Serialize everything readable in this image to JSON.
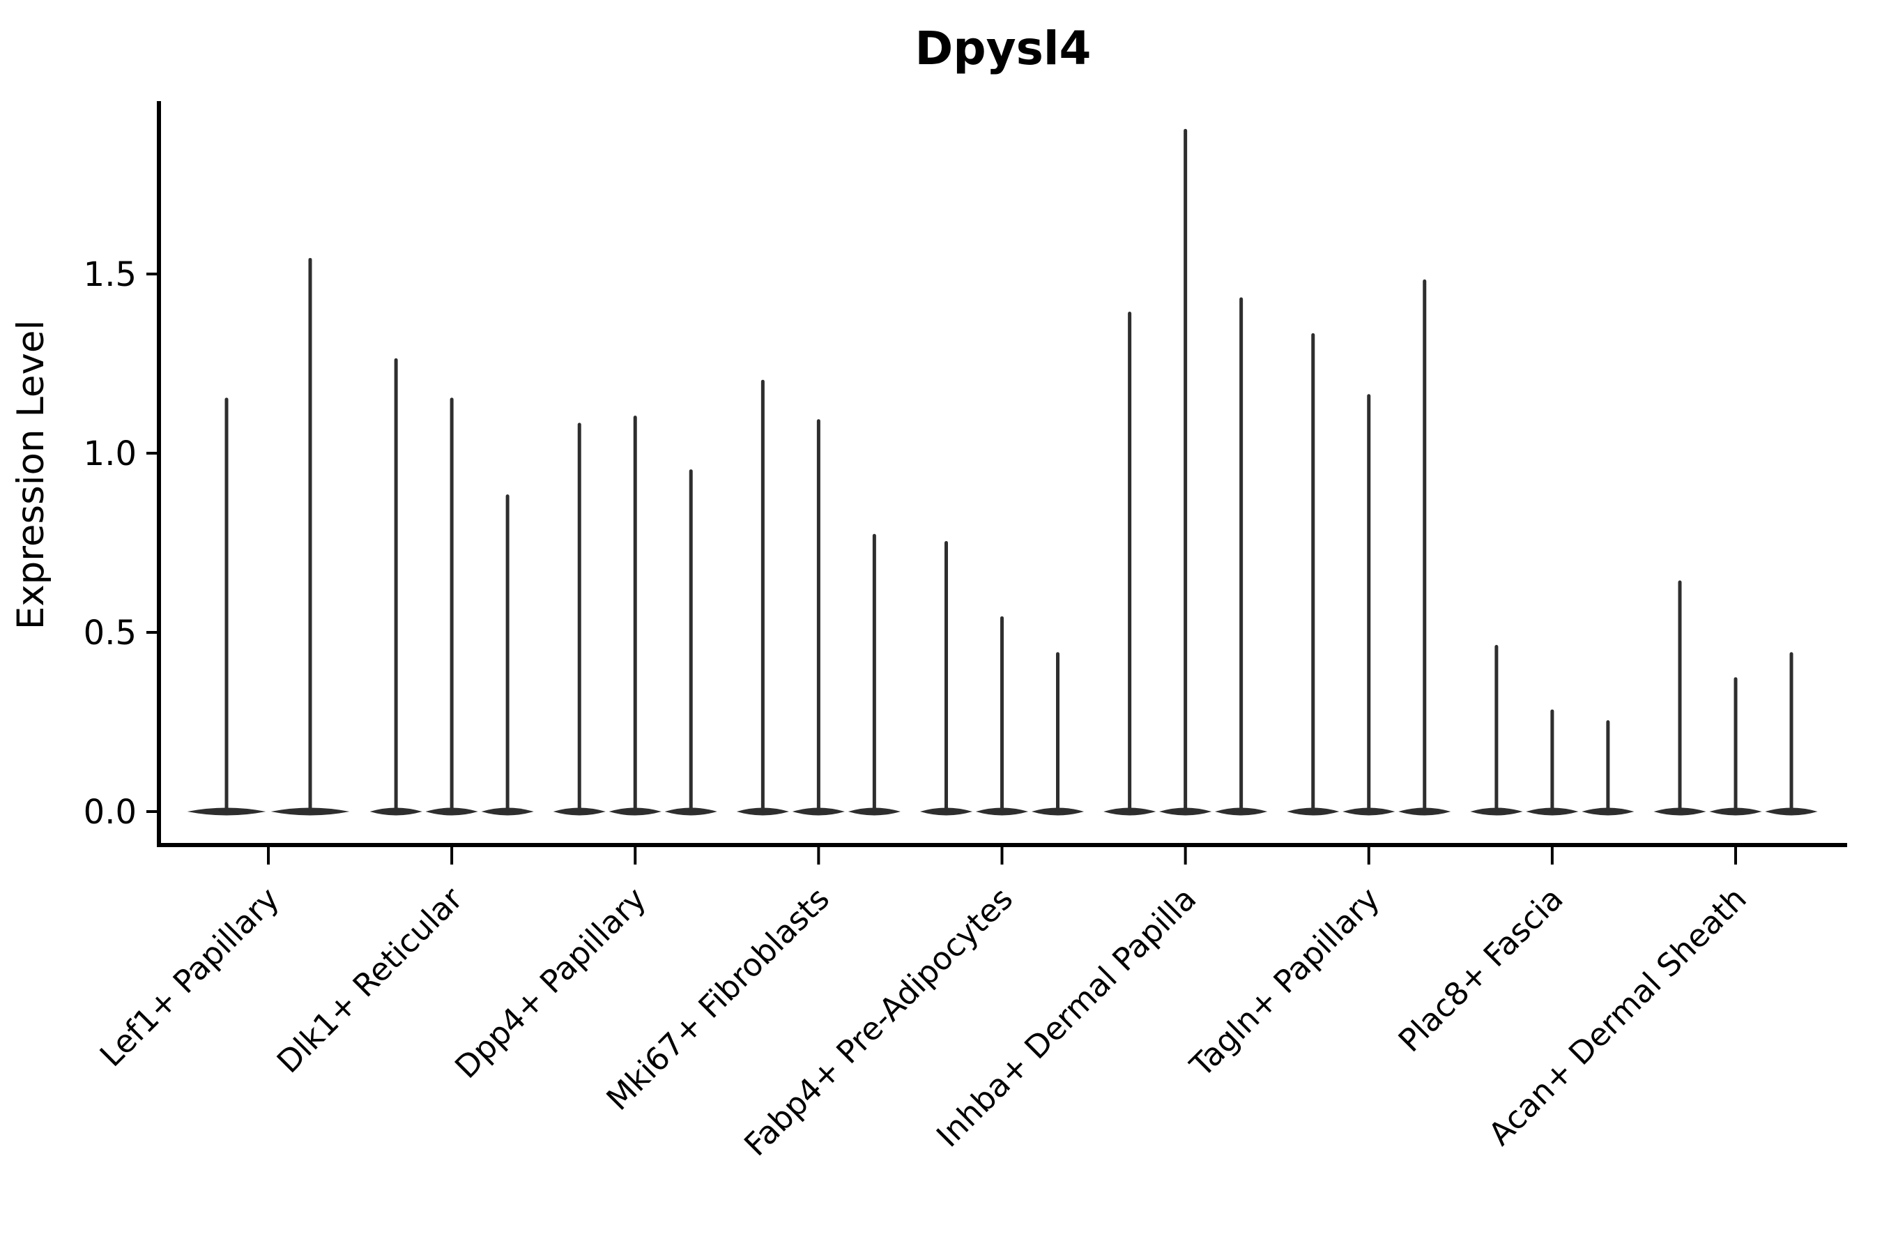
{
  "chart_data": {
    "type": "violin",
    "title": "Dpysl4",
    "xlabel": "",
    "ylabel": "Expression Level",
    "yticks": [
      {
        "value": 0.0,
        "label": "0.0"
      },
      {
        "value": 0.5,
        "label": "0.5"
      },
      {
        "value": 1.0,
        "label": "1.0"
      },
      {
        "value": 1.5,
        "label": "1.5"
      }
    ],
    "ylim": [
      -0.09,
      1.98
    ],
    "grid": false,
    "legend": "none",
    "xtick_rotation_deg": 45,
    "categories": [
      "Lef1+ Papillary",
      "Dlk1+ Reticular",
      "Dpp4+ Papillary",
      "Mki67+ Fibroblasts",
      "Fabp4+ Pre-Adipocytes",
      "Inhba+ Dermal Papilla",
      "Tagln+ Papillary",
      "Plac8+ Fascia",
      "Acan+ Dermal Sheath"
    ],
    "series": [
      {
        "category": "Lef1+ Papillary",
        "violin_max_values": [
          1.15,
          1.54
        ]
      },
      {
        "category": "Dlk1+ Reticular",
        "violin_max_values": [
          1.26,
          1.15,
          0.88
        ]
      },
      {
        "category": "Dpp4+ Papillary",
        "violin_max_values": [
          1.08,
          1.1,
          0.95
        ]
      },
      {
        "category": "Mki67+ Fibroblasts",
        "violin_max_values": [
          1.2,
          1.09,
          0.77
        ]
      },
      {
        "category": "Fabp4+ Pre-Adipocytes",
        "violin_max_values": [
          0.75,
          0.54,
          0.44
        ]
      },
      {
        "category": "Inhba+ Dermal Papilla",
        "violin_max_values": [
          1.39,
          1.9,
          1.43
        ]
      },
      {
        "category": "Tagln+ Papillary",
        "violin_max_values": [
          1.33,
          1.16,
          1.48
        ]
      },
      {
        "category": "Plac8+ Fascia",
        "violin_max_values": [
          0.46,
          0.28,
          0.25
        ]
      },
      {
        "category": "Acan+ Dermal Sheath",
        "violin_max_values": [
          0.64,
          0.37,
          0.44
        ]
      }
    ],
    "violin_bulk_at_zero": true,
    "colors": {
      "violin": "#2e2e2e",
      "axis": "#000000",
      "text": "#000000",
      "background": "#ffffff"
    }
  }
}
